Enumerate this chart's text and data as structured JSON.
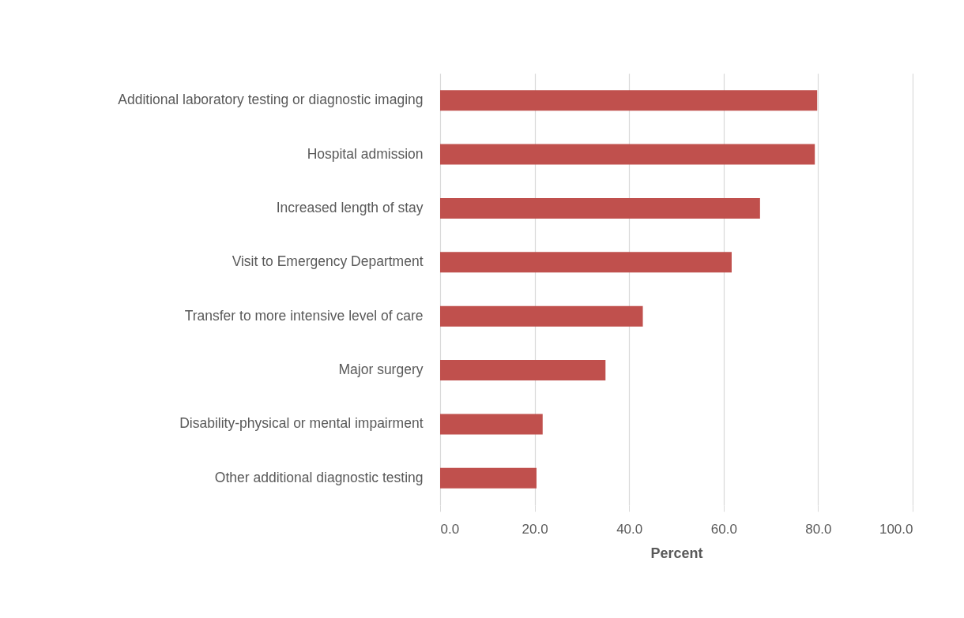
{
  "chart_data": {
    "type": "bar",
    "orientation": "horizontal",
    "xlabel": "Percent",
    "categories": [
      "Additional laboratory testing or diagnostic imaging",
      "Hospital admission",
      "Increased length of stay",
      "Visit to Emergency Department",
      "Transfer to more intensive level of care",
      "Major surgery",
      "Disability-physical or mental impairment",
      "Other additional diagnostic testing"
    ],
    "values": [
      79.8,
      79.3,
      67.7,
      61.7,
      42.9,
      35.0,
      21.7,
      20.4
    ],
    "color": "#c0504d",
    "xlim": [
      0,
      100
    ],
    "xticks": [
      {
        "value": 0,
        "label": "0.0"
      },
      {
        "value": 20,
        "label": "20.0"
      },
      {
        "value": 40,
        "label": "40.0"
      },
      {
        "value": 60,
        "label": "60.0"
      },
      {
        "value": 80,
        "label": "80.0"
      },
      {
        "value": 100,
        "label": "100.0"
      }
    ],
    "grid": "x"
  }
}
